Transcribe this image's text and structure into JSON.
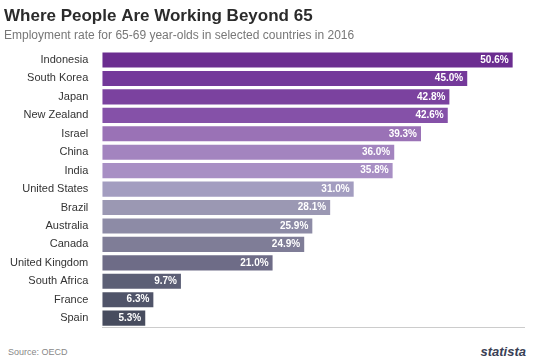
{
  "chart_data": {
    "type": "bar",
    "orientation": "horizontal",
    "title": "Where People Are Working Beyond 65",
    "subtitle": "Employment rate for 65-69 year-olds in selected countries in 2016",
    "source": "Source: OECD",
    "brand": "statista",
    "categories": [
      "Indonesia",
      "South Korea",
      "Japan",
      "New Zealand",
      "Israel",
      "China",
      "India",
      "United States",
      "Brazil",
      "Australia",
      "Canada",
      "United Kingdom",
      "South Africa",
      "France",
      "Spain"
    ],
    "values": [
      50.6,
      45.0,
      42.8,
      42.6,
      39.3,
      36.0,
      35.8,
      31.0,
      28.1,
      25.9,
      24.9,
      21.0,
      9.7,
      6.3,
      5.3
    ],
    "value_labels": [
      "50.6%",
      "45.0%",
      "42.8%",
      "42.6%",
      "39.3%",
      "36.0%",
      "35.8%",
      "31.0%",
      "28.1%",
      "25.9%",
      "24.9%",
      "21.0%",
      "9.7%",
      "6.3%",
      "5.3%"
    ],
    "colors": [
      "#6b2d90",
      "#74399a",
      "#7b429f",
      "#8551a8",
      "#9a72b6",
      "#a384bf",
      "#a88fc4",
      "#a39dc0",
      "#9b98b3",
      "#8d8ba6",
      "#7f7d97",
      "#6e6c87",
      "#5c5f75",
      "#505469",
      "#474c5e"
    ],
    "xlim": [
      0,
      52
    ],
    "grid": false,
    "data_labels": true,
    "tick_labels": "y"
  }
}
